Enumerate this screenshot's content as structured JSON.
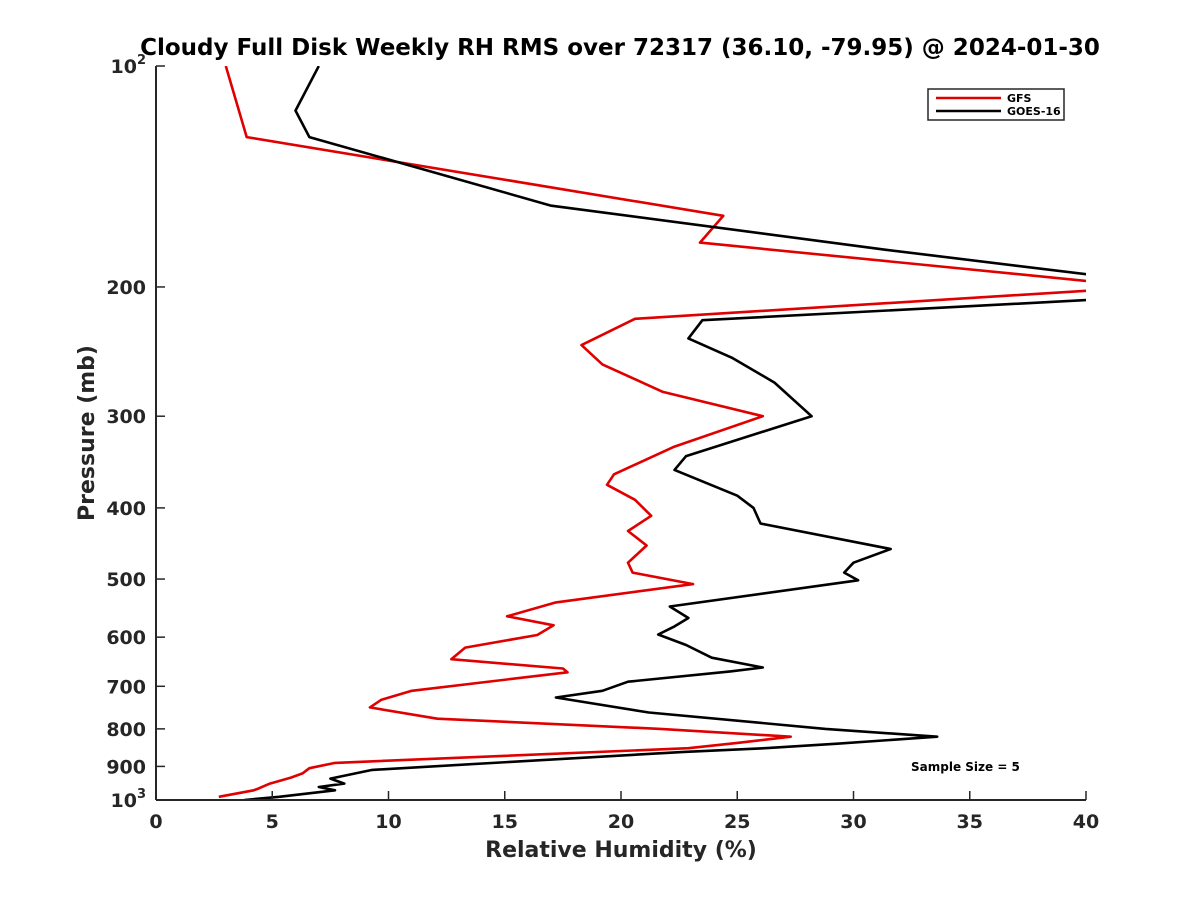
{
  "chart_data": {
    "type": "line",
    "title": "Cloudy Full Disk Weekly RH RMS over 72317 (36.10, -79.95) @ 2024-01-30",
    "xlabel": "Relative Humidity (%)",
    "ylabel": "Pressure (mb)",
    "xlim": [
      0,
      40
    ],
    "ylim": [
      100,
      1000
    ],
    "y_scale": "log",
    "y_reversed": true,
    "x_ticks": [
      0,
      5,
      10,
      15,
      20,
      25,
      30,
      35,
      40
    ],
    "x_tick_labels": [
      "0",
      "5",
      "10",
      "15",
      "20",
      "25",
      "30",
      "35",
      "40"
    ],
    "y_ticks": [
      {
        "value": 100,
        "base": "10",
        "exp": "2"
      },
      {
        "value": 200,
        "base": "200",
        "exp": ""
      },
      {
        "value": 300,
        "base": "300",
        "exp": ""
      },
      {
        "value": 400,
        "base": "400",
        "exp": ""
      },
      {
        "value": 500,
        "base": "500",
        "exp": ""
      },
      {
        "value": 600,
        "base": "600",
        "exp": ""
      },
      {
        "value": 700,
        "base": "700",
        "exp": ""
      },
      {
        "value": 800,
        "base": "800",
        "exp": ""
      },
      {
        "value": 900,
        "base": "900",
        "exp": ""
      },
      {
        "value": 1000,
        "base": "10",
        "exp": "3"
      }
    ],
    "grid": false,
    "legend_position": "top-right",
    "annotation": "Sample Size = 5",
    "series": [
      {
        "name": "GFS",
        "color": "#e00000",
        "points": [
          [
            3.0,
            100
          ],
          [
            3.9,
            125
          ],
          [
            24.4,
            160
          ],
          [
            23.4,
            174
          ],
          [
            40.5,
            197
          ],
          [
            40.5,
            202
          ],
          [
            20.6,
            221
          ],
          [
            18.3,
            240
          ],
          [
            19.2,
            255
          ],
          [
            21.8,
            278
          ],
          [
            26.1,
            300
          ],
          [
            22.3,
            330
          ],
          [
            19.7,
            360
          ],
          [
            19.4,
            372
          ],
          [
            20.6,
            390
          ],
          [
            21.3,
            410
          ],
          [
            20.3,
            430
          ],
          [
            21.1,
            450
          ],
          [
            20.3,
            475
          ],
          [
            20.5,
            490
          ],
          [
            23.1,
            508
          ],
          [
            17.2,
            538
          ],
          [
            15.1,
            562
          ],
          [
            17.1,
            578
          ],
          [
            16.4,
            596
          ],
          [
            13.3,
            620
          ],
          [
            12.7,
            643
          ],
          [
            17.5,
            662
          ],
          [
            17.7,
            670
          ],
          [
            11.0,
            710
          ],
          [
            9.7,
            730
          ],
          [
            9.2,
            748
          ],
          [
            12.1,
            775
          ],
          [
            21.7,
            800
          ],
          [
            27.3,
            820
          ],
          [
            25.0,
            836
          ],
          [
            22.9,
            850
          ],
          [
            7.7,
            890
          ],
          [
            6.6,
            905
          ],
          [
            6.3,
            920
          ],
          [
            5.8,
            932
          ],
          [
            4.9,
            950
          ],
          [
            4.4,
            965
          ],
          [
            4.2,
            970
          ],
          [
            2.7,
            990
          ]
        ]
      },
      {
        "name": "GOES-16",
        "color": "#000000",
        "points": [
          [
            7.0,
            100
          ],
          [
            6.0,
            115
          ],
          [
            6.6,
            125
          ],
          [
            17.0,
            155
          ],
          [
            31.4,
            178
          ],
          [
            40.5,
            193
          ],
          [
            40.5,
            208
          ],
          [
            23.5,
            222
          ],
          [
            22.9,
            235
          ],
          [
            24.8,
            250
          ],
          [
            26.6,
            270
          ],
          [
            28.2,
            300
          ],
          [
            22.8,
            340
          ],
          [
            22.3,
            355
          ],
          [
            25.0,
            385
          ],
          [
            25.7,
            400
          ],
          [
            26.0,
            420
          ],
          [
            31.6,
            455
          ],
          [
            30.0,
            475
          ],
          [
            29.6,
            490
          ],
          [
            30.2,
            502
          ],
          [
            22.1,
            545
          ],
          [
            22.9,
            565
          ],
          [
            22.3,
            580
          ],
          [
            21.6,
            595
          ],
          [
            22.8,
            615
          ],
          [
            23.9,
            640
          ],
          [
            26.1,
            660
          ],
          [
            24.7,
            668
          ],
          [
            20.3,
            690
          ],
          [
            19.2,
            710
          ],
          [
            17.2,
            725
          ],
          [
            21.2,
            760
          ],
          [
            28.8,
            800
          ],
          [
            33.6,
            820
          ],
          [
            29.3,
            838
          ],
          [
            26.2,
            850
          ],
          [
            22.7,
            860
          ],
          [
            9.3,
            910
          ],
          [
            7.5,
            935
          ],
          [
            8.1,
            950
          ],
          [
            7.0,
            960
          ],
          [
            7.7,
            970
          ],
          [
            5.3,
            990
          ],
          [
            3.8,
            1000
          ]
        ]
      }
    ]
  }
}
